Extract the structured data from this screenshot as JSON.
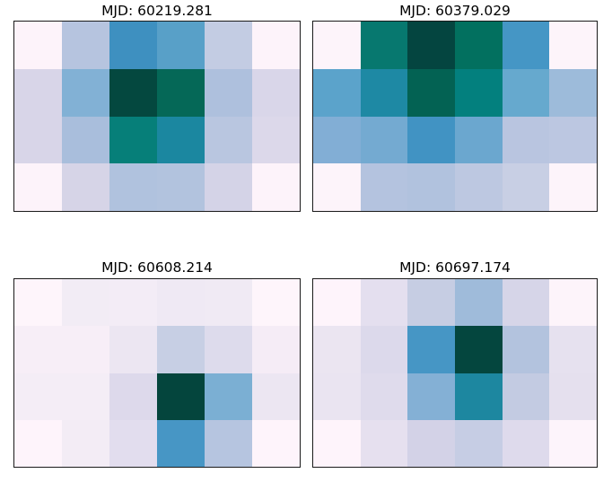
{
  "figure": {
    "background": "#ffffff",
    "layout": "2x2-grid-of-heatmaps",
    "border_color": "#1a1a1a"
  },
  "chart_data": [
    {
      "type": "heatmap",
      "title": "MJD: 60219.281",
      "rows": 4,
      "cols": 6,
      "colormap": "PuBuGn",
      "axes_visible": false,
      "cell_colors": [
        [
          "#fdf3fa",
          "#b6c4df",
          "#3e90c0",
          "#58a0c8",
          "#c3cce3",
          "#fdf3fa"
        ],
        [
          "#d8d5e8",
          "#82b1d5",
          "#04483f",
          "#056857",
          "#aec0dd",
          "#d9d6e9"
        ],
        [
          "#d8d5e8",
          "#a9bedc",
          "#067f79",
          "#1b87a0",
          "#b9c6e0",
          "#dcd8ea"
        ],
        [
          "#fdf3fa",
          "#d6d4e7",
          "#b0c2de",
          "#b2c3de",
          "#d4d3e7",
          "#fdf3fa"
        ]
      ],
      "values_normalized": [
        [
          0.01,
          0.33,
          0.62,
          0.55,
          0.29,
          0.01
        ],
        [
          0.22,
          0.45,
          0.98,
          0.88,
          0.35,
          0.22
        ],
        [
          0.22,
          0.36,
          0.8,
          0.71,
          0.32,
          0.21
        ],
        [
          0.01,
          0.23,
          0.34,
          0.34,
          0.24,
          0.01
        ]
      ]
    },
    {
      "type": "heatmap",
      "title": "MJD: 60379.029",
      "rows": 4,
      "cols": 6,
      "colormap": "PuBuGn",
      "axes_visible": false,
      "cell_colors": [
        [
          "#fdf4fa",
          "#07786f",
          "#044540",
          "#02705f",
          "#4596c5",
          "#fdf4fa"
        ],
        [
          "#5ba3cb",
          "#1e89a4",
          "#036253",
          "#03807e",
          "#66a9ce",
          "#9dbbda"
        ],
        [
          "#82aed5",
          "#74aad1",
          "#4193c3",
          "#6ba7cf",
          "#b9c5e0",
          "#bcc7e1"
        ],
        [
          "#fdf4fa",
          "#b4c3df",
          "#b1c2de",
          "#bdc8e1",
          "#c8cfe4",
          "#fdf4fa"
        ]
      ],
      "values_normalized": [
        [
          0.01,
          0.83,
          0.98,
          0.86,
          0.6,
          0.01
        ],
        [
          0.53,
          0.7,
          0.91,
          0.78,
          0.5,
          0.39
        ],
        [
          0.45,
          0.48,
          0.6,
          0.49,
          0.32,
          0.31
        ],
        [
          0.01,
          0.33,
          0.34,
          0.31,
          0.27,
          0.01
        ]
      ]
    },
    {
      "type": "heatmap",
      "title": "MJD: 60608.214",
      "rows": 4,
      "cols": 6,
      "colormap": "PuBuGn",
      "axes_visible": false,
      "cell_colors": [
        [
          "#fef5fb",
          "#f2ecf5",
          "#f3ecf6",
          "#efe9f4",
          "#f0eaf4",
          "#fef5fb"
        ],
        [
          "#f7eef7",
          "#f7eef7",
          "#ece6f2",
          "#c7cfe4",
          "#dddbec",
          "#f5ecf6"
        ],
        [
          "#f4edf6",
          "#f4edf6",
          "#ddd9eb",
          "#04453d",
          "#7bafd3",
          "#ece6f2"
        ],
        [
          "#fef4fb",
          "#f3ecf5",
          "#e2ddee",
          "#4796c5",
          "#b6c5e0",
          "#fef4fb"
        ]
      ],
      "values_normalized": [
        [
          0.01,
          0.07,
          0.07,
          0.09,
          0.09,
          0.01
        ],
        [
          0.05,
          0.05,
          0.12,
          0.27,
          0.2,
          0.06
        ],
        [
          0.06,
          0.06,
          0.21,
          0.99,
          0.47,
          0.12
        ],
        [
          0.01,
          0.07,
          0.18,
          0.6,
          0.33,
          0.01
        ]
      ]
    },
    {
      "type": "heatmap",
      "title": "MJD: 60697.174",
      "rows": 4,
      "cols": 6,
      "colormap": "PuBuGn",
      "axes_visible": false,
      "cell_colors": [
        [
          "#fef4fb",
          "#e4dfef",
          "#c6cde3",
          "#9fbbda",
          "#d6d5e8",
          "#fdf4fa"
        ],
        [
          "#ebe5f1",
          "#dcd9eb",
          "#4696c5",
          "#04463e",
          "#b3c3de",
          "#e6e1ef"
        ],
        [
          "#eae4f1",
          "#dfdbec",
          "#84b0d5",
          "#1d87a0",
          "#c3cbe2",
          "#e5e0ee"
        ],
        [
          "#fef4fb",
          "#e6e0ef",
          "#d3d2e7",
          "#c6cde4",
          "#dedaec",
          "#fdf4fb"
        ]
      ],
      "values_normalized": [
        [
          0.01,
          0.16,
          0.28,
          0.38,
          0.23,
          0.01
        ],
        [
          0.12,
          0.21,
          0.6,
          0.98,
          0.34,
          0.14
        ],
        [
          0.13,
          0.19,
          0.45,
          0.71,
          0.29,
          0.15
        ],
        [
          0.01,
          0.15,
          0.24,
          0.28,
          0.2,
          0.01
        ]
      ]
    }
  ]
}
